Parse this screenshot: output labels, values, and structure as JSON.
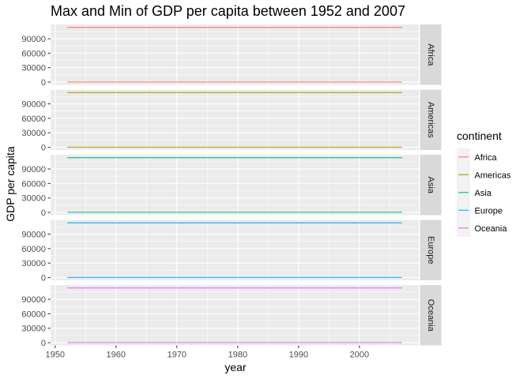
{
  "chart_data": {
    "type": "line",
    "title": "Max and Min of GDP per capita between 1952 and 2007",
    "xlabel": "year",
    "ylabel": "GDP per capita",
    "xlim": [
      1949.25,
      2009.75
    ],
    "ylim": [
      -5692.38,
      119548.3
    ],
    "x_ticks": [
      1950,
      1960,
      1970,
      1980,
      1990,
      2000
    ],
    "y_ticks": [
      0,
      30000,
      60000,
      90000
    ],
    "grid": true,
    "legend": {
      "title": "continent",
      "placement": "right"
    },
    "series": [
      {
        "name": "Africa",
        "color": "#F8766D",
        "x": [
          1952,
          2007
        ],
        "max": [
          113523.1,
          113523.1
        ],
        "min": [
          241.17,
          241.17
        ]
      },
      {
        "name": "Americas",
        "color": "#A3A500",
        "x": [
          1952,
          2007
        ],
        "max": [
          113523.1,
          113523.1
        ],
        "min": [
          241.17,
          241.17
        ]
      },
      {
        "name": "Asia",
        "color": "#00BF7D",
        "x": [
          1952,
          2007
        ],
        "max": [
          113523.1,
          113523.1
        ],
        "min": [
          241.17,
          241.17
        ]
      },
      {
        "name": "Europe",
        "color": "#00B0F6",
        "x": [
          1952,
          2007
        ],
        "max": [
          113523.1,
          113523.1
        ],
        "min": [
          241.17,
          241.17
        ]
      },
      {
        "name": "Oceania",
        "color": "#E76BF3",
        "x": [
          1952,
          2007
        ],
        "max": [
          113523.1,
          113523.1
        ],
        "min": [
          241.17,
          241.17
        ]
      }
    ]
  }
}
